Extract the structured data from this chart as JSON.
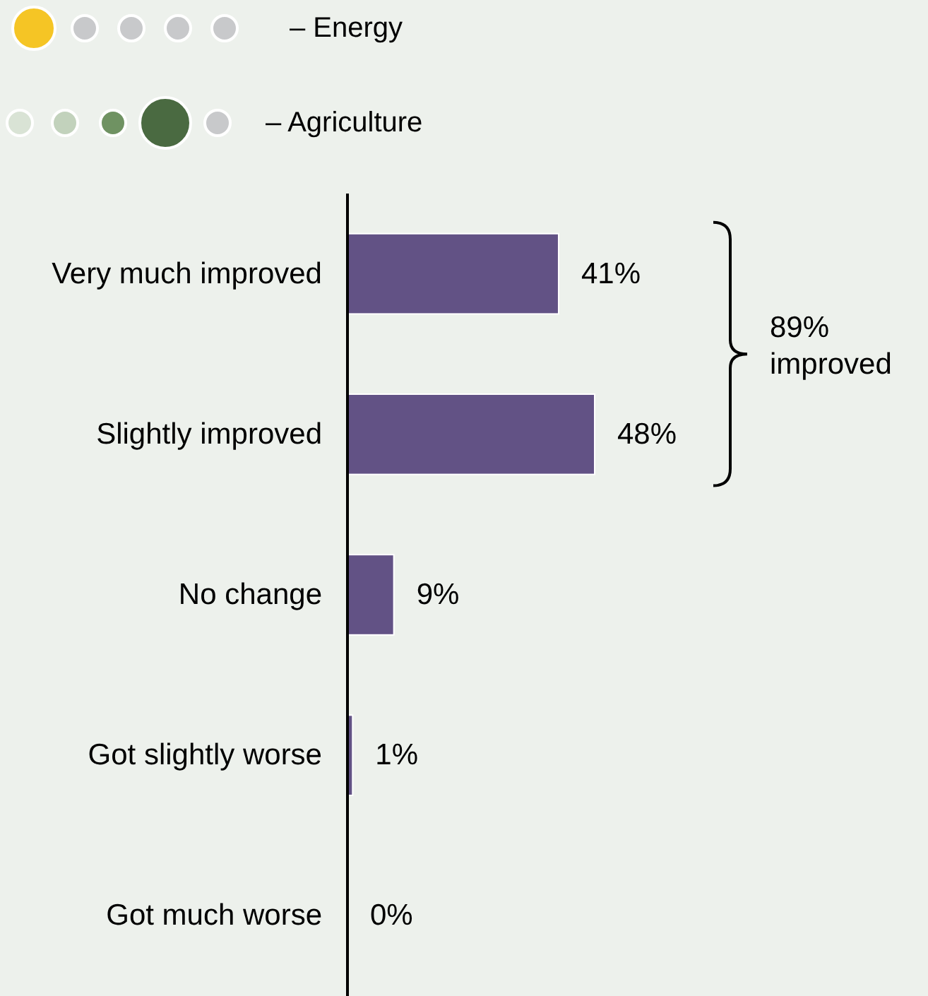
{
  "chart_data": {
    "type": "bar",
    "orientation": "horizontal",
    "categories": [
      "Very much improved",
      "Slightly improved",
      "No change",
      "Got slightly worse",
      "Got much worse"
    ],
    "values": [
      41,
      48,
      9,
      1,
      0
    ],
    "value_labels": [
      "41%",
      "48%",
      "9%",
      "1%",
      "0%"
    ],
    "color": "#625285",
    "annotations": [
      "– Energy",
      "– Agriculture",
      "89% improved"
    ]
  }
}
